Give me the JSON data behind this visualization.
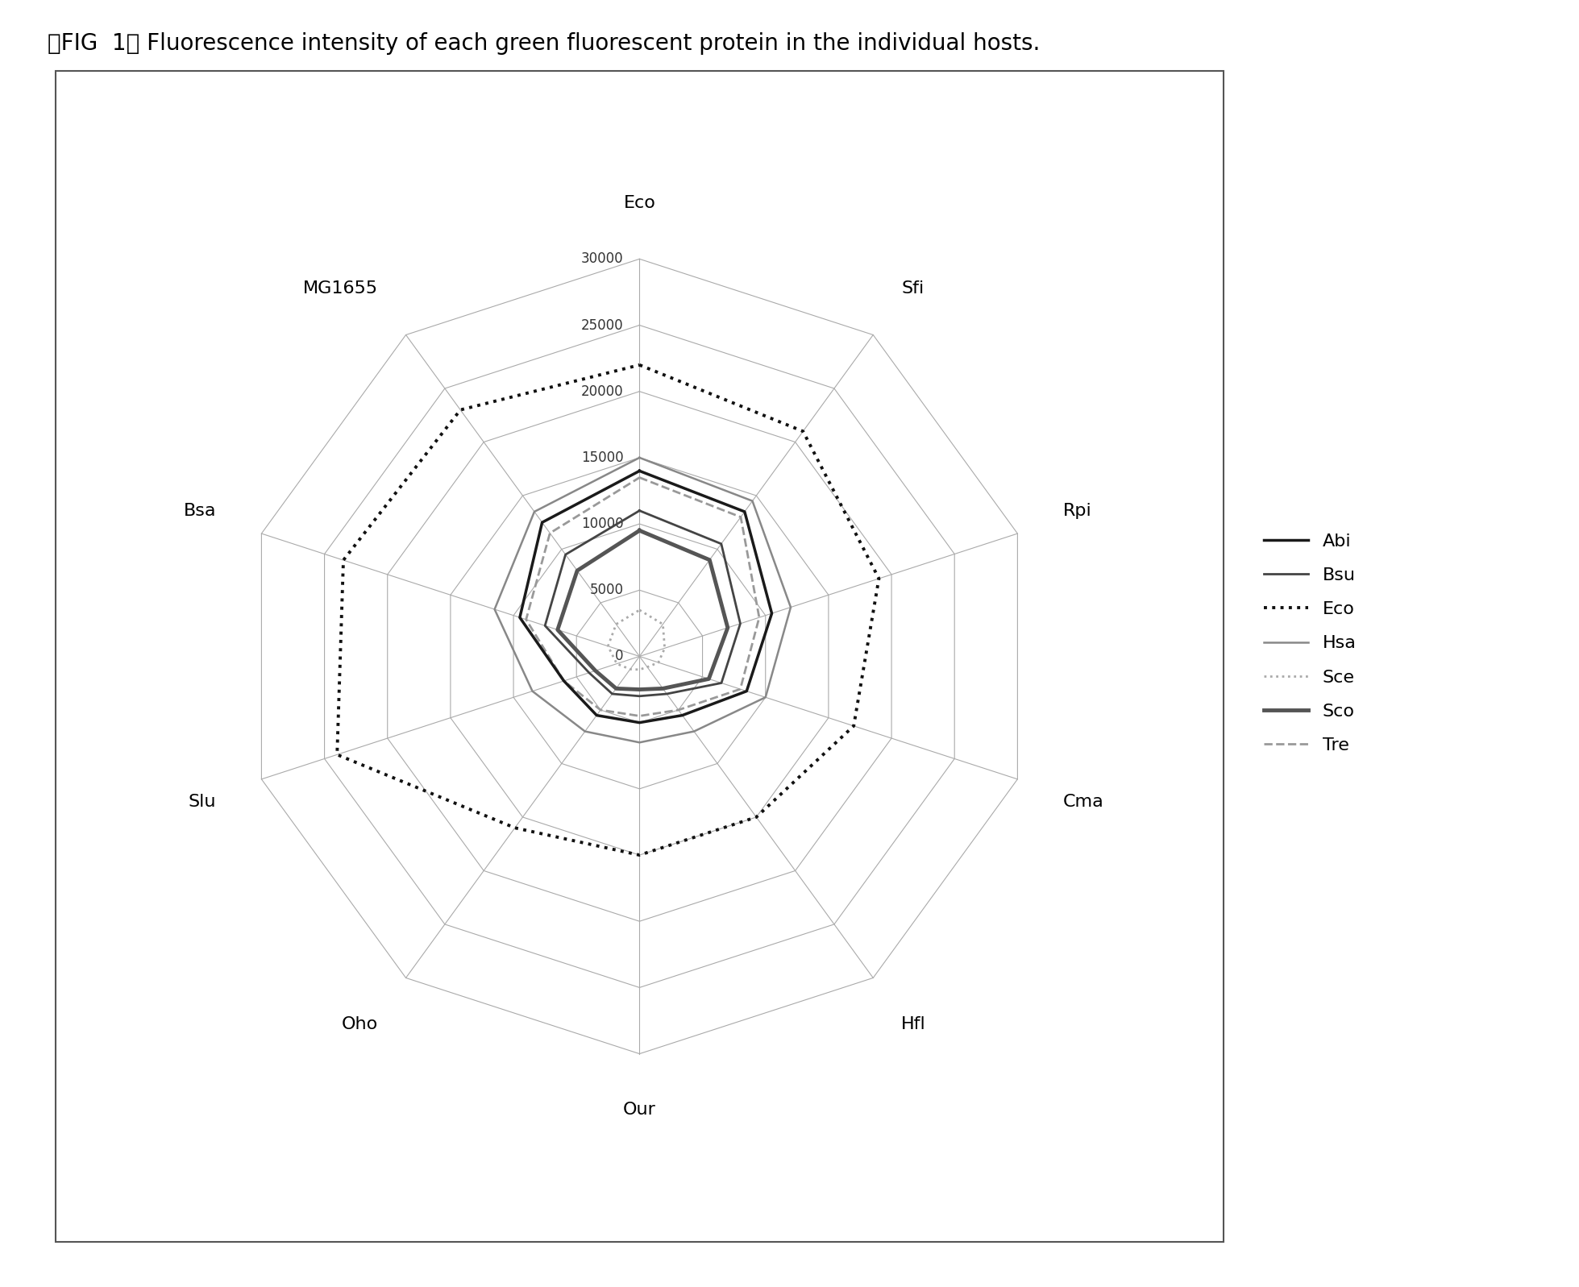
{
  "title": "【FIG  1】 Fluorescence intensity of each green fluorescent protein in the individual hosts.",
  "categories": [
    "Eco",
    "Sfi",
    "Rpi",
    "Cma",
    "Hfl",
    "Our",
    "Oho",
    "Slu",
    "Bsa",
    "MG1655"
  ],
  "max_val": 30000,
  "rings": [
    5000,
    10000,
    15000,
    20000,
    25000,
    30000
  ],
  "ring_labels": [
    "5000",
    "10000",
    "15000",
    "20000",
    "25000",
    "30000"
  ],
  "center_label": "0",
  "series": {
    "Abi": {
      "values": [
        14000,
        13500,
        10500,
        8500,
        5500,
        5000,
        5500,
        6000,
        9500,
        12500
      ],
      "color": "#1a1a1a",
      "linestyle": "solid",
      "linewidth": 2.5,
      "zorder": 5
    },
    "Bsu": {
      "values": [
        11000,
        10500,
        8000,
        6500,
        3500,
        3000,
        3500,
        4000,
        7500,
        9500
      ],
      "color": "#444444",
      "linestyle": "solid",
      "linewidth": 2.0,
      "zorder": 4
    },
    "Eco": {
      "values": [
        22000,
        21000,
        19000,
        17000,
        15000,
        15000,
        16000,
        24000,
        23500,
        23000
      ],
      "color": "#111111",
      "linestyle": "dotted",
      "linewidth": 2.8,
      "zorder": 6
    },
    "Hsa": {
      "values": [
        15000,
        14500,
        12000,
        10000,
        7000,
        6500,
        7000,
        8500,
        11500,
        13500
      ],
      "color": "#888888",
      "linestyle": "solid",
      "linewidth": 1.8,
      "zorder": 3
    },
    "Sce": {
      "values": [
        3500,
        3000,
        2000,
        1500,
        1000,
        1000,
        1200,
        1800,
        2500,
        3000
      ],
      "color": "#aaaaaa",
      "linestyle": "dotted",
      "linewidth": 2.0,
      "zorder": 2
    },
    "Sco": {
      "values": [
        9500,
        9000,
        7000,
        5500,
        3000,
        2500,
        3000,
        3500,
        6500,
        8000
      ],
      "color": "#555555",
      "linestyle": "solid",
      "linewidth": 3.5,
      "zorder": 4
    },
    "Tre": {
      "values": [
        13500,
        13000,
        9500,
        8000,
        5000,
        4500,
        5000,
        6000,
        9000,
        11500
      ],
      "color": "#999999",
      "linestyle": "dashed",
      "linewidth": 2.0,
      "zorder": 3
    }
  },
  "background_color": "#ffffff",
  "grid_color": "#aaaaaa",
  "spoke_color": "#aaaaaa"
}
